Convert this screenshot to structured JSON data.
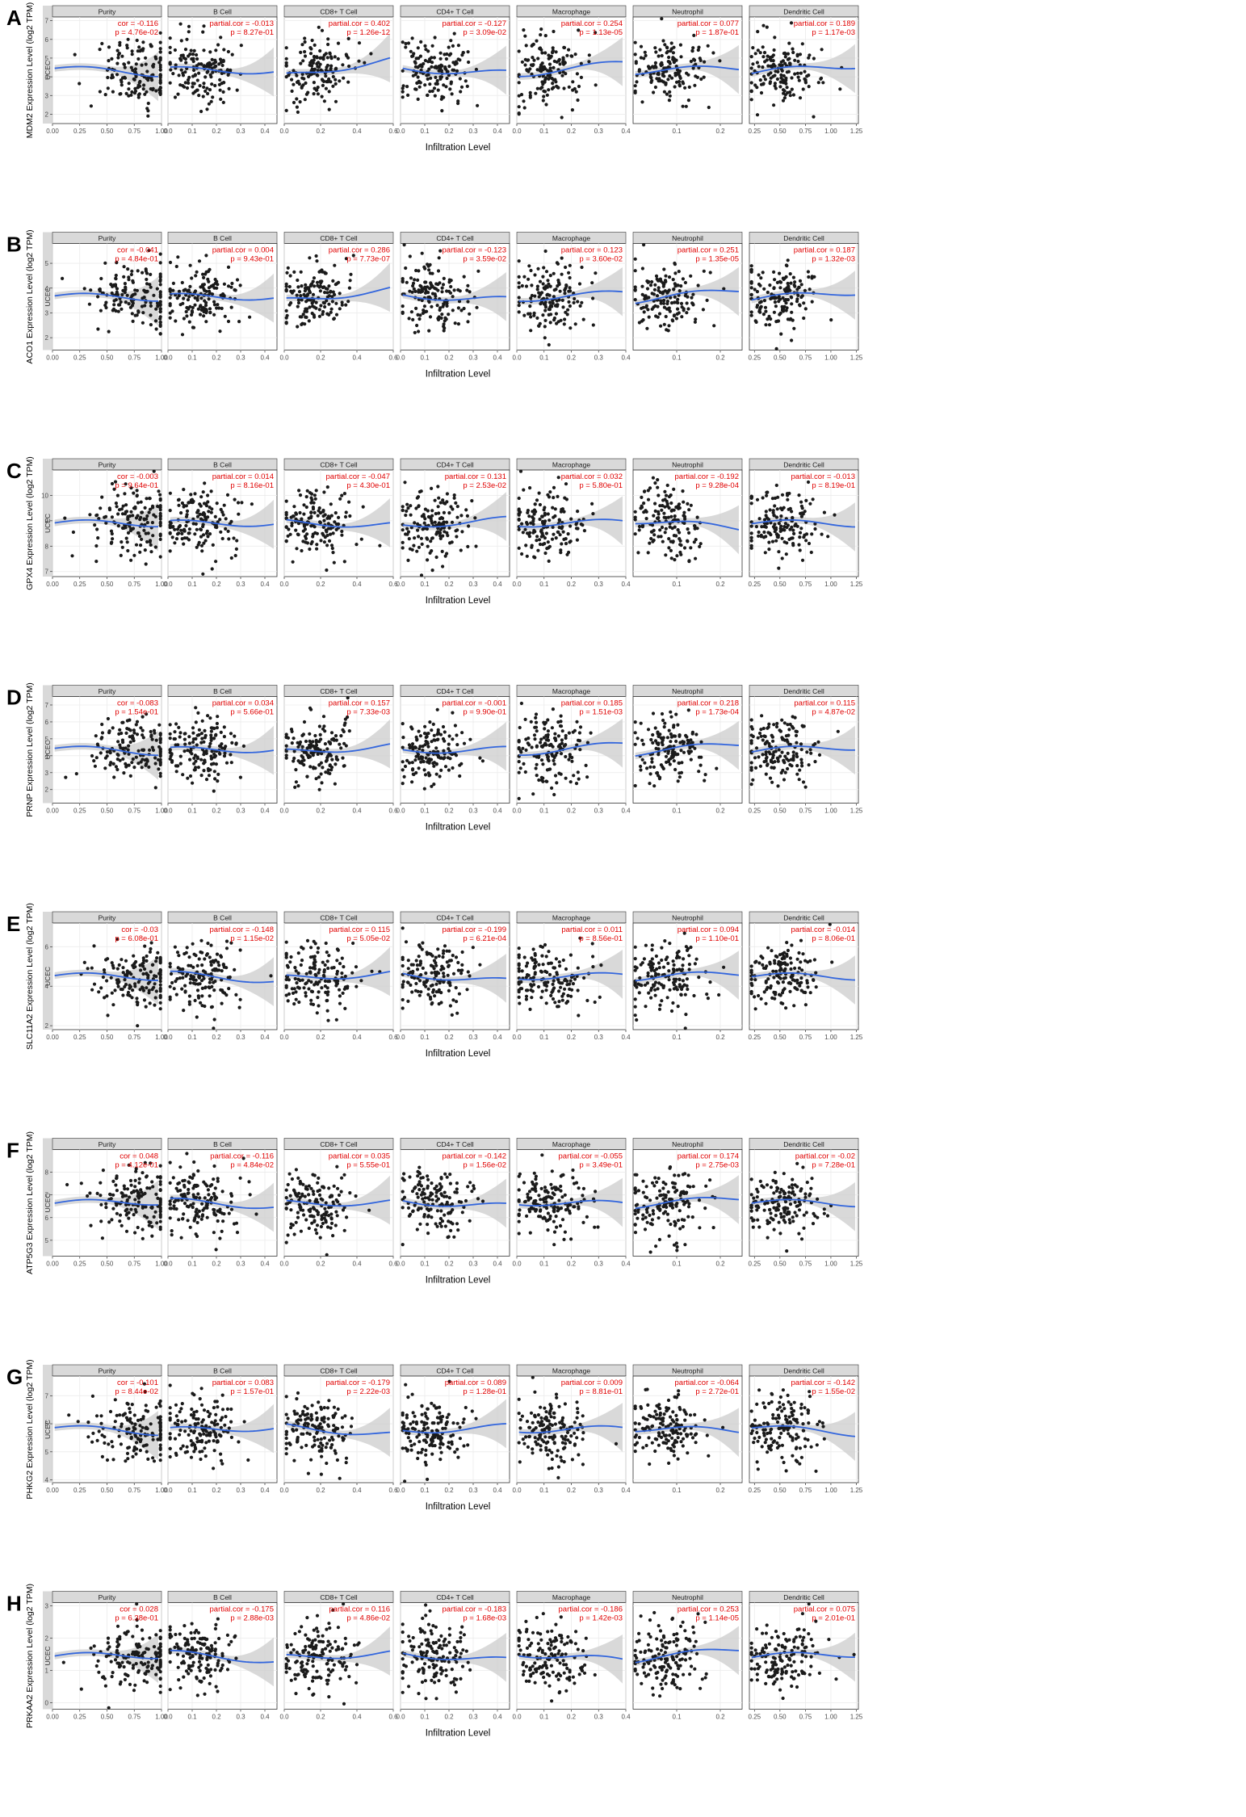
{
  "figure": {
    "x_axis_title": "Infiltration Level",
    "facet_side_label": "UCEC",
    "colors": {
      "points": "#1a1a1a",
      "smooth": "#3366dd",
      "band": "#cccccc",
      "annotation": "#e00000",
      "strip": "#d9d9d9",
      "grid": "#ebebeb"
    }
  },
  "chart_data": [
    {
      "type": "scatter",
      "panel": "A",
      "gene": "MDM2",
      "ylabel": "MDM2 Expression Level (log2 TPM)",
      "ylim": [
        1.5,
        7.2
      ],
      "yticks": [
        2,
        3,
        4,
        5,
        6,
        7
      ],
      "facets": [
        {
          "name": "Purity",
          "xlim": [
            0,
            1
          ],
          "xticks": [
            0,
            0.25,
            0.5,
            0.75,
            1
          ],
          "stat": "cor",
          "cor": "-0.116",
          "p": "4.76e-02"
        },
        {
          "name": "B Cell",
          "xlim": [
            0,
            0.45
          ],
          "xticks": [
            0,
            0.1,
            0.2,
            0.3,
            0.4
          ],
          "stat": "partial.cor",
          "cor": "-0.013",
          "p": "8.27e-01"
        },
        {
          "name": "CD8+ T Cell",
          "xlim": [
            0,
            0.6
          ],
          "xticks": [
            0,
            0.2,
            0.4,
            0.6
          ],
          "stat": "partial.cor",
          "cor": "0.402",
          "p": "1.26e-12"
        },
        {
          "name": "CD4+ T Cell",
          "xlim": [
            0,
            0.45
          ],
          "xticks": [
            0,
            0.1,
            0.2,
            0.3,
            0.4
          ],
          "stat": "partial.cor",
          "cor": "-0.127",
          "p": "3.09e-02"
        },
        {
          "name": "Macrophage",
          "xlim": [
            0,
            0.4
          ],
          "xticks": [
            0,
            0.1,
            0.2,
            0.3,
            0.4
          ],
          "stat": "partial.cor",
          "cor": "0.254",
          "p": "1.13e-05"
        },
        {
          "name": "Neutrophil",
          "xlim": [
            0,
            0.25
          ],
          "xticks": [
            0.1,
            0.2
          ],
          "stat": "partial.cor",
          "cor": "0.077",
          "p": "1.87e-01"
        },
        {
          "name": "Dendritic Cell",
          "xlim": [
            0.2,
            1.27
          ],
          "xticks": [
            0.25,
            0.5,
            0.75,
            1,
            1.25
          ],
          "stat": "partial.cor",
          "cor": "0.189",
          "p": "1.17e-03"
        }
      ]
    },
    {
      "type": "scatter",
      "panel": "B",
      "gene": "ACO1",
      "ylabel": "ACO1 Expression Level (log2 TPM)",
      "ylim": [
        1.5,
        5.8
      ],
      "yticks": [
        2,
        3,
        4,
        5
      ],
      "facets": [
        {
          "name": "Purity",
          "xlim": [
            0,
            1
          ],
          "xticks": [
            0,
            0.25,
            0.5,
            0.75,
            1
          ],
          "stat": "cor",
          "cor": "-0.041",
          "p": "4.84e-01"
        },
        {
          "name": "B Cell",
          "xlim": [
            0,
            0.45
          ],
          "xticks": [
            0,
            0.1,
            0.2,
            0.3,
            0.4
          ],
          "stat": "partial.cor",
          "cor": "0.004",
          "p": "9.43e-01"
        },
        {
          "name": "CD8+ T Cell",
          "xlim": [
            0,
            0.6
          ],
          "xticks": [
            0,
            0.2,
            0.4,
            0.6
          ],
          "stat": "partial.cor",
          "cor": "0.286",
          "p": "7.73e-07"
        },
        {
          "name": "CD4+ T Cell",
          "xlim": [
            0,
            0.45
          ],
          "xticks": [
            0,
            0.1,
            0.2,
            0.3,
            0.4
          ],
          "stat": "partial.cor",
          "cor": "-0.123",
          "p": "3.59e-02"
        },
        {
          "name": "Macrophage",
          "xlim": [
            0,
            0.4
          ],
          "xticks": [
            0,
            0.1,
            0.2,
            0.3,
            0.4
          ],
          "stat": "partial.cor",
          "cor": "0.123",
          "p": "3.60e-02"
        },
        {
          "name": "Neutrophil",
          "xlim": [
            0,
            0.25
          ],
          "xticks": [
            0.1,
            0.2
          ],
          "stat": "partial.cor",
          "cor": "0.251",
          "p": "1.35e-05"
        },
        {
          "name": "Dendritic Cell",
          "xlim": [
            0.2,
            1.27
          ],
          "xticks": [
            0.25,
            0.5,
            0.75,
            1,
            1.25
          ],
          "stat": "partial.cor",
          "cor": "0.187",
          "p": "1.32e-03"
        }
      ]
    },
    {
      "type": "scatter",
      "panel": "C",
      "gene": "GPX4",
      "ylabel": "GPX4 Expression Level (log2 TPM)",
      "ylim": [
        6.8,
        11
      ],
      "yticks": [
        7,
        8,
        9,
        10
      ],
      "facets": [
        {
          "name": "Purity",
          "xlim": [
            0,
            1
          ],
          "xticks": [
            0,
            0.25,
            0.5,
            0.75,
            1
          ],
          "stat": "cor",
          "cor": "-0.003",
          "p": "9.64e-01"
        },
        {
          "name": "B Cell",
          "xlim": [
            0,
            0.45
          ],
          "xticks": [
            0,
            0.1,
            0.2,
            0.3,
            0.4
          ],
          "stat": "partial.cor",
          "cor": "0.014",
          "p": "8.16e-01"
        },
        {
          "name": "CD8+ T Cell",
          "xlim": [
            0,
            0.6
          ],
          "xticks": [
            0,
            0.2,
            0.4,
            0.6
          ],
          "stat": "partial.cor",
          "cor": "-0.047",
          "p": "4.30e-01"
        },
        {
          "name": "CD4+ T Cell",
          "xlim": [
            0,
            0.45
          ],
          "xticks": [
            0,
            0.1,
            0.2,
            0.3,
            0.4
          ],
          "stat": "partial.cor",
          "cor": "0.131",
          "p": "2.53e-02"
        },
        {
          "name": "Macrophage",
          "xlim": [
            0,
            0.4
          ],
          "xticks": [
            0,
            0.1,
            0.2,
            0.3,
            0.4
          ],
          "stat": "partial.cor",
          "cor": "0.032",
          "p": "5.80e-01"
        },
        {
          "name": "Neutrophil",
          "xlim": [
            0,
            0.25
          ],
          "xticks": [
            0.1,
            0.2
          ],
          "stat": "partial.cor",
          "cor": "-0.192",
          "p": "9.28e-04"
        },
        {
          "name": "Dendritic Cell",
          "xlim": [
            0.2,
            1.27
          ],
          "xticks": [
            0.25,
            0.5,
            0.75,
            1,
            1.25
          ],
          "stat": "partial.cor",
          "cor": "-0.013",
          "p": "8.19e-01"
        }
      ]
    },
    {
      "type": "scatter",
      "panel": "D",
      "gene": "PRNP",
      "ylabel": "PRNP Expression Level (log2 TPM)",
      "ylim": [
        1.2,
        7.5
      ],
      "yticks": [
        2,
        3,
        4,
        5,
        6,
        7
      ],
      "facets": [
        {
          "name": "Purity",
          "xlim": [
            0,
            1
          ],
          "xticks": [
            0,
            0.25,
            0.5,
            0.75,
            1
          ],
          "stat": "cor",
          "cor": "-0.083",
          "p": "1.54e-01"
        },
        {
          "name": "B Cell",
          "xlim": [
            0,
            0.45
          ],
          "xticks": [
            0,
            0.1,
            0.2,
            0.3,
            0.4
          ],
          "stat": "partial.cor",
          "cor": "0.034",
          "p": "5.66e-01"
        },
        {
          "name": "CD8+ T Cell",
          "xlim": [
            0,
            0.6
          ],
          "xticks": [
            0,
            0.2,
            0.4,
            0.6
          ],
          "stat": "partial.cor",
          "cor": "0.157",
          "p": "7.33e-03"
        },
        {
          "name": "CD4+ T Cell",
          "xlim": [
            0,
            0.45
          ],
          "xticks": [
            0,
            0.1,
            0.2,
            0.3,
            0.4
          ],
          "stat": "partial.cor",
          "cor": "-0.001",
          "p": "9.90e-01"
        },
        {
          "name": "Macrophage",
          "xlim": [
            0,
            0.4
          ],
          "xticks": [
            0,
            0.1,
            0.2,
            0.3,
            0.4
          ],
          "stat": "partial.cor",
          "cor": "0.185",
          "p": "1.51e-03"
        },
        {
          "name": "Neutrophil",
          "xlim": [
            0,
            0.25
          ],
          "xticks": [
            0.1,
            0.2
          ],
          "stat": "partial.cor",
          "cor": "0.218",
          "p": "1.73e-04"
        },
        {
          "name": "Dendritic Cell",
          "xlim": [
            0.2,
            1.27
          ],
          "xticks": [
            0.25,
            0.5,
            0.75,
            1,
            1.25
          ],
          "stat": "partial.cor",
          "cor": "0.115",
          "p": "4.87e-02"
        }
      ]
    },
    {
      "type": "scatter",
      "panel": "E",
      "gene": "SLC11A2",
      "ylabel": "SLC11A2 Expression Level (log2 TPM)",
      "ylim": [
        1.8,
        7.2
      ],
      "yticks": [
        2,
        4,
        6
      ],
      "facets": [
        {
          "name": "Purity",
          "xlim": [
            0,
            1
          ],
          "xticks": [
            0,
            0.25,
            0.5,
            0.75,
            1
          ],
          "stat": "cor",
          "cor": "-0.03",
          "p": "6.08e-01"
        },
        {
          "name": "B Cell",
          "xlim": [
            0,
            0.45
          ],
          "xticks": [
            0,
            0.1,
            0.2,
            0.3,
            0.4
          ],
          "stat": "partial.cor",
          "cor": "-0.148",
          "p": "1.15e-02"
        },
        {
          "name": "CD8+ T Cell",
          "xlim": [
            0,
            0.6
          ],
          "xticks": [
            0,
            0.2,
            0.4,
            0.6
          ],
          "stat": "partial.cor",
          "cor": "0.115",
          "p": "5.05e-02"
        },
        {
          "name": "CD4+ T Cell",
          "xlim": [
            0,
            0.45
          ],
          "xticks": [
            0,
            0.1,
            0.2,
            0.3,
            0.4
          ],
          "stat": "partial.cor",
          "cor": "-0.199",
          "p": "6.21e-04"
        },
        {
          "name": "Macrophage",
          "xlim": [
            0,
            0.4
          ],
          "xticks": [
            0,
            0.1,
            0.2,
            0.3,
            0.4
          ],
          "stat": "partial.cor",
          "cor": "0.011",
          "p": "8.56e-01"
        },
        {
          "name": "Neutrophil",
          "xlim": [
            0,
            0.25
          ],
          "xticks": [
            0.1,
            0.2
          ],
          "stat": "partial.cor",
          "cor": "0.094",
          "p": "1.10e-01"
        },
        {
          "name": "Dendritic Cell",
          "xlim": [
            0.2,
            1.27
          ],
          "xticks": [
            0.25,
            0.5,
            0.75,
            1,
            1.25
          ],
          "stat": "partial.cor",
          "cor": "-0.014",
          "p": "8.06e-01"
        }
      ]
    },
    {
      "type": "scatter",
      "panel": "F",
      "gene": "ATP5G3",
      "ylabel": "ATP5G3 Expression Level (log2 TPM)",
      "ylim": [
        4.3,
        9
      ],
      "yticks": [
        5,
        6,
        7,
        8
      ],
      "facets": [
        {
          "name": "Purity",
          "xlim": [
            0,
            1
          ],
          "xticks": [
            0,
            0.25,
            0.5,
            0.75,
            1
          ],
          "stat": "cor",
          "cor": "0.048",
          "p": "4.12e-01"
        },
        {
          "name": "B Cell",
          "xlim": [
            0,
            0.45
          ],
          "xticks": [
            0,
            0.1,
            0.2,
            0.3,
            0.4
          ],
          "stat": "partial.cor",
          "cor": "-0.116",
          "p": "4.84e-02"
        },
        {
          "name": "CD8+ T Cell",
          "xlim": [
            0,
            0.6
          ],
          "xticks": [
            0,
            0.2,
            0.4,
            0.6
          ],
          "stat": "partial.cor",
          "cor": "0.035",
          "p": "5.55e-01"
        },
        {
          "name": "CD4+ T Cell",
          "xlim": [
            0,
            0.45
          ],
          "xticks": [
            0,
            0.1,
            0.2,
            0.3,
            0.4
          ],
          "stat": "partial.cor",
          "cor": "-0.142",
          "p": "1.56e-02"
        },
        {
          "name": "Macrophage",
          "xlim": [
            0,
            0.4
          ],
          "xticks": [
            0,
            0.1,
            0.2,
            0.3,
            0.4
          ],
          "stat": "partial.cor",
          "cor": "-0.055",
          "p": "3.49e-01"
        },
        {
          "name": "Neutrophil",
          "xlim": [
            0,
            0.25
          ],
          "xticks": [
            0.1,
            0.2
          ],
          "stat": "partial.cor",
          "cor": "0.174",
          "p": "2.75e-03"
        },
        {
          "name": "Dendritic Cell",
          "xlim": [
            0.2,
            1.27
          ],
          "xticks": [
            0.25,
            0.5,
            0.75,
            1,
            1.25
          ],
          "stat": "partial.cor",
          "cor": "-0.02",
          "p": "7.28e-01"
        }
      ]
    },
    {
      "type": "scatter",
      "panel": "G",
      "gene": "PHKG2",
      "ylabel": "PHKG2 Expression Level (log2 TPM)",
      "ylim": [
        3.9,
        7.7
      ],
      "yticks": [
        4,
        5,
        6,
        7
      ],
      "facets": [
        {
          "name": "Purity",
          "xlim": [
            0,
            1
          ],
          "xticks": [
            0,
            0.25,
            0.5,
            0.75,
            1
          ],
          "stat": "cor",
          "cor": "-0.101",
          "p": "8.44e-02"
        },
        {
          "name": "B Cell",
          "xlim": [
            0,
            0.45
          ],
          "xticks": [
            0,
            0.1,
            0.2,
            0.3,
            0.4
          ],
          "stat": "partial.cor",
          "cor": "0.083",
          "p": "1.57e-01"
        },
        {
          "name": "CD8+ T Cell",
          "xlim": [
            0,
            0.6
          ],
          "xticks": [
            0,
            0.2,
            0.4,
            0.6
          ],
          "stat": "partial.cor",
          "cor": "-0.179",
          "p": "2.22e-03"
        },
        {
          "name": "CD4+ T Cell",
          "xlim": [
            0,
            0.45
          ],
          "xticks": [
            0,
            0.1,
            0.2,
            0.3,
            0.4
          ],
          "stat": "partial.cor",
          "cor": "0.089",
          "p": "1.28e-01"
        },
        {
          "name": "Macrophage",
          "xlim": [
            0,
            0.4
          ],
          "xticks": [
            0,
            0.1,
            0.2,
            0.3,
            0.4
          ],
          "stat": "partial.cor",
          "cor": "0.009",
          "p": "8.81e-01"
        },
        {
          "name": "Neutrophil",
          "xlim": [
            0,
            0.25
          ],
          "xticks": [
            0.1,
            0.2
          ],
          "stat": "partial.cor",
          "cor": "-0.064",
          "p": "2.72e-01"
        },
        {
          "name": "Dendritic Cell",
          "xlim": [
            0.2,
            1.27
          ],
          "xticks": [
            0.25,
            0.5,
            0.75,
            1,
            1.25
          ],
          "stat": "partial.cor",
          "cor": "-0.142",
          "p": "1.55e-02"
        }
      ]
    },
    {
      "type": "scatter",
      "panel": "H",
      "gene": "PRKAA2",
      "ylabel": "PRKAA2 Expression Level (log2 TPM)",
      "ylim": [
        -0.2,
        3.1
      ],
      "yticks": [
        0,
        1,
        2,
        3
      ],
      "facets": [
        {
          "name": "Purity",
          "xlim": [
            0,
            1
          ],
          "xticks": [
            0,
            0.25,
            0.5,
            0.75,
            1
          ],
          "stat": "cor",
          "cor": "0.028",
          "p": "6.38e-01"
        },
        {
          "name": "B Cell",
          "xlim": [
            0,
            0.45
          ],
          "xticks": [
            0,
            0.1,
            0.2,
            0.3,
            0.4
          ],
          "stat": "partial.cor",
          "cor": "-0.175",
          "p": "2.88e-03"
        },
        {
          "name": "CD8+ T Cell",
          "xlim": [
            0,
            0.6
          ],
          "xticks": [
            0,
            0.2,
            0.4,
            0.6
          ],
          "stat": "partial.cor",
          "cor": "0.116",
          "p": "4.86e-02"
        },
        {
          "name": "CD4+ T Cell",
          "xlim": [
            0,
            0.45
          ],
          "xticks": [
            0,
            0.1,
            0.2,
            0.3,
            0.4
          ],
          "stat": "partial.cor",
          "cor": "-0.183",
          "p": "1.68e-03"
        },
        {
          "name": "Macrophage",
          "xlim": [
            0,
            0.4
          ],
          "xticks": [
            0,
            0.1,
            0.2,
            0.3,
            0.4
          ],
          "stat": "partial.cor",
          "cor": "-0.186",
          "p": "1.42e-03"
        },
        {
          "name": "Neutrophil",
          "xlim": [
            0,
            0.25
          ],
          "xticks": [
            0.1,
            0.2
          ],
          "stat": "partial.cor",
          "cor": "0.253",
          "p": "1.14e-05"
        },
        {
          "name": "Dendritic Cell",
          "xlim": [
            0.2,
            1.27
          ],
          "xticks": [
            0.25,
            0.5,
            0.75,
            1,
            1.25
          ],
          "stat": "partial.cor",
          "cor": "0.075",
          "p": "2.01e-01"
        }
      ]
    }
  ]
}
